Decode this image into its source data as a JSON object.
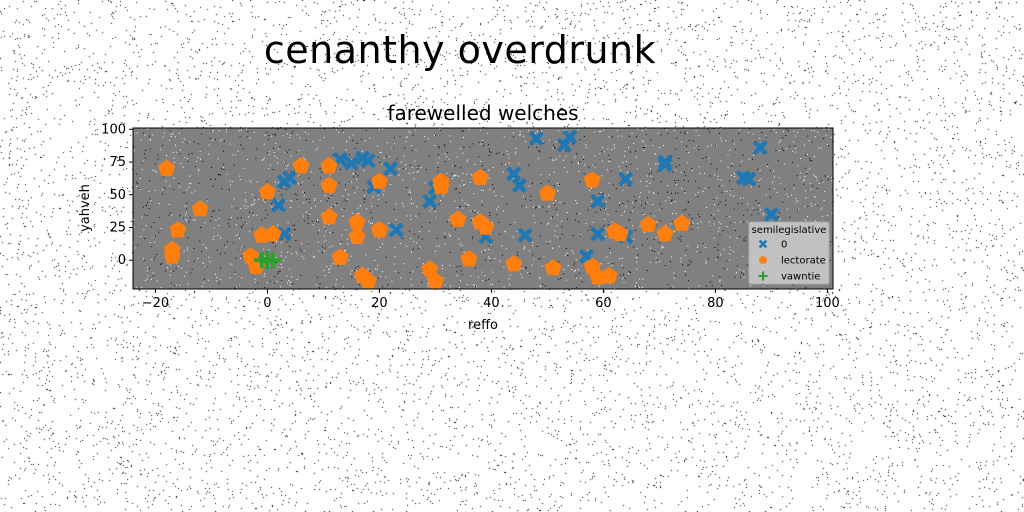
{
  "figure": {
    "suptitle": "cenanthy overdrunk"
  },
  "chart_data": {
    "type": "scatter",
    "title": "farewelled welches",
    "xlabel": "reffo",
    "ylabel": "yahveh",
    "xlim": [
      -24,
      101
    ],
    "ylim": [
      -22,
      101
    ],
    "xticks": [
      -20,
      0,
      20,
      40,
      60,
      80,
      100
    ],
    "yticks": [
      0,
      25,
      50,
      75,
      100
    ],
    "grid": false,
    "background": "#808080",
    "legend": {
      "title": "semilegislative",
      "placement": "right"
    },
    "series": [
      {
        "name": "0",
        "marker": "x",
        "color": "#1f77b4",
        "points": [
          [
            3,
            60
          ],
          [
            4,
            63
          ],
          [
            2,
            42
          ],
          [
            3,
            20
          ],
          [
            13,
            77
          ],
          [
            15,
            74
          ],
          [
            17,
            78
          ],
          [
            18,
            76
          ],
          [
            19,
            56
          ],
          [
            22,
            70
          ],
          [
            23,
            23
          ],
          [
            29,
            45
          ],
          [
            30,
            55
          ],
          [
            39,
            18
          ],
          [
            44,
            66
          ],
          [
            45,
            57
          ],
          [
            46,
            19
          ],
          [
            48,
            93
          ],
          [
            53,
            88
          ],
          [
            54,
            94
          ],
          [
            57,
            3
          ],
          [
            59,
            20
          ],
          [
            59,
            45
          ],
          [
            64,
            62
          ],
          [
            64,
            18
          ],
          [
            71,
            75
          ],
          [
            71,
            73
          ],
          [
            85,
            63
          ],
          [
            86,
            62
          ],
          [
            88,
            86
          ],
          [
            90,
            35
          ]
        ]
      },
      {
        "name": "lectorate",
        "marker": "pentagon",
        "color": "#ff7f0e",
        "points": [
          [
            -18,
            70
          ],
          [
            -17,
            8
          ],
          [
            -17,
            3
          ],
          [
            -16,
            23
          ],
          [
            -12,
            39
          ],
          [
            -3,
            3
          ],
          [
            -2,
            -5
          ],
          [
            -1,
            19
          ],
          [
            0,
            52
          ],
          [
            1,
            20
          ],
          [
            6,
            72
          ],
          [
            11,
            72
          ],
          [
            11,
            57
          ],
          [
            11,
            33
          ],
          [
            13,
            2
          ],
          [
            16,
            29
          ],
          [
            16,
            18
          ],
          [
            17,
            -12
          ],
          [
            18,
            -16
          ],
          [
            20,
            60
          ],
          [
            20,
            23
          ],
          [
            29,
            -7
          ],
          [
            30,
            -16
          ],
          [
            31,
            60
          ],
          [
            31,
            56
          ],
          [
            34,
            31
          ],
          [
            36,
            1
          ],
          [
            38,
            63
          ],
          [
            38,
            29
          ],
          [
            39,
            25
          ],
          [
            44,
            -3
          ],
          [
            50,
            51
          ],
          [
            51,
            -6
          ],
          [
            58,
            61
          ],
          [
            58,
            -5
          ],
          [
            59,
            -13
          ],
          [
            61,
            -12
          ],
          [
            62,
            22
          ],
          [
            63,
            20
          ],
          [
            68,
            27
          ],
          [
            71,
            20
          ],
          [
            74,
            28
          ]
        ]
      },
      {
        "name": "vawntie",
        "marker": "plus",
        "color": "#2ca02c",
        "points": [
          [
            -1,
            0
          ],
          [
            0,
            1
          ],
          [
            0,
            -1
          ],
          [
            1,
            0
          ]
        ]
      }
    ]
  }
}
